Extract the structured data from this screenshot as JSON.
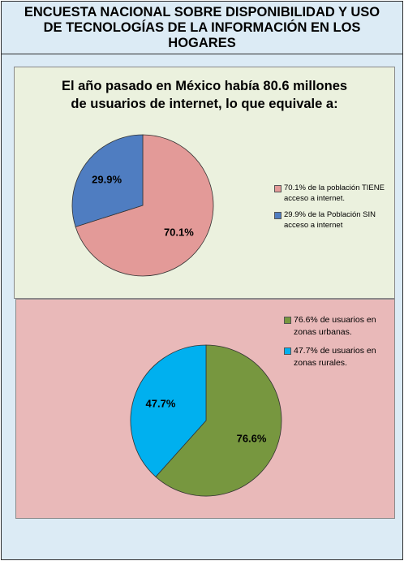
{
  "header": {
    "title_lines": [
      "ENCUESTA NACIONAL SOBRE DISPONIBILIDAD Y USO",
      "DE TECNOLOGÍAS DE LA INFORMACIÓN EN LOS",
      "HOGARES"
    ]
  },
  "colors": {
    "frame_bg": "#dcebf5",
    "panel1_bg": "#ebf1de",
    "panel2_bg": "#e9b9b9",
    "pink": "#e39a98",
    "blue": "#4f7dc1",
    "green": "#77973f",
    "cyan": "#00b0ef"
  },
  "chart_data": [
    {
      "type": "pie",
      "title_lines": [
        "El año pasado en México había 80.6 millones",
        "de usuarios de internet, lo que equivale a:"
      ],
      "slices": [
        {
          "label": "70.1%",
          "value": 70.1,
          "color": "#e39a98",
          "legend": [
            "70.1% de la población TIENE",
            "acceso a internet."
          ]
        },
        {
          "label": "29.9%",
          "value": 29.9,
          "color": "#4f7dc1",
          "legend": [
            "29.9% de la Población SIN",
            "acceso a internet"
          ]
        }
      ],
      "legend_position": "right"
    },
    {
      "type": "pie",
      "slices": [
        {
          "label": "76.6%",
          "value": 76.6,
          "color": "#77973f",
          "legend": [
            "76.6% de usuarios en",
            "zonas urbanas."
          ]
        },
        {
          "label": "47.7%",
          "value": 47.7,
          "color": "#00b0ef",
          "legend": [
            "47.7% de usuarios en",
            "zonas rurales."
          ]
        }
      ],
      "legend_position": "top-right"
    }
  ]
}
